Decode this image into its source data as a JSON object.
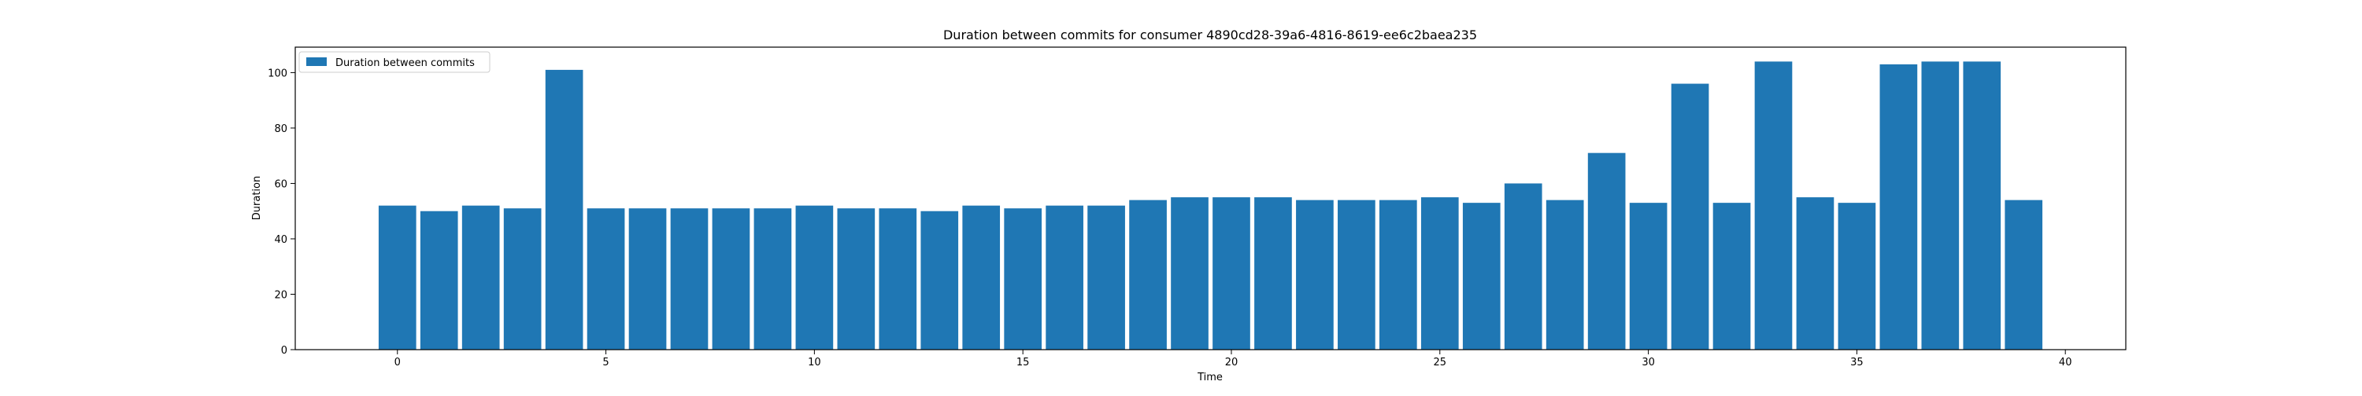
{
  "colors": {
    "bar": "#1f77b4",
    "axis": "#000000",
    "background": "#ffffff",
    "legend_border": "#cccccc"
  },
  "chart_data": {
    "type": "bar",
    "title": "Duration between commits for consumer 4890cd28-39a6-4816-8619-ee6c2baea235",
    "xlabel": "Time",
    "ylabel": "Duration",
    "xlim": [
      -2.45,
      41.45
    ],
    "ylim": [
      0,
      109.2
    ],
    "xticks": [
      0,
      5,
      10,
      15,
      20,
      25,
      30,
      35,
      40
    ],
    "yticks": [
      0,
      20,
      40,
      60,
      80,
      100
    ],
    "legend": {
      "label": "Duration between commits",
      "location": "upper-left"
    },
    "bar_width": 0.9,
    "x": [
      0,
      1,
      2,
      3,
      4,
      5,
      6,
      7,
      8,
      9,
      10,
      11,
      12,
      13,
      14,
      15,
      16,
      17,
      18,
      19,
      20,
      21,
      22,
      23,
      24,
      25,
      26,
      27,
      28,
      29,
      30,
      31,
      32,
      33,
      34,
      35,
      36,
      37,
      38,
      39
    ],
    "values": [
      52,
      50,
      52,
      51,
      101,
      51,
      51,
      51,
      51,
      51,
      52,
      51,
      51,
      50,
      52,
      51,
      52,
      52,
      54,
      55,
      55,
      55,
      54,
      54,
      54,
      55,
      53,
      60,
      54,
      71,
      53,
      96,
      53,
      104,
      55,
      53,
      103,
      104,
      104,
      54
    ],
    "grid": false
  }
}
